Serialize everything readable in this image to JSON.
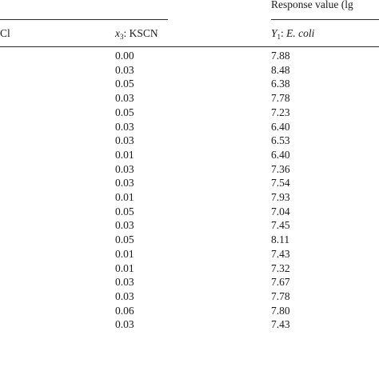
{
  "header": {
    "response_group": "Response value (lg",
    "col_x2_tail": "Cl",
    "col_x3_var": "x",
    "col_x3_sub": "3",
    "col_x3_rest": ": KSCN",
    "col_y1_var": "Y",
    "col_y1_sub": "1",
    "col_y1_colon": ":",
    "col_y1_species": "E. coli"
  },
  "rows": [
    {
      "x3": "0.00",
      "y1": "7.88"
    },
    {
      "x3": "0.03",
      "y1": "8.48"
    },
    {
      "x3": "0.05",
      "y1": "6.38"
    },
    {
      "x3": "0.03",
      "y1": "7.78"
    },
    {
      "x3": "0.05",
      "y1": "7.23"
    },
    {
      "x3": "0.03",
      "y1": "6.40"
    },
    {
      "x3": "0.03",
      "y1": "6.53"
    },
    {
      "x3": "0.01",
      "y1": "6.40"
    },
    {
      "x3": "0.03",
      "y1": "7.36"
    },
    {
      "x3": "0.03",
      "y1": "7.54"
    },
    {
      "x3": "0.01",
      "y1": "7.93"
    },
    {
      "x3": "0.05",
      "y1": "7.04"
    },
    {
      "x3": "0.03",
      "y1": "7.45"
    },
    {
      "x3": "0.05",
      "y1": "8.11"
    },
    {
      "x3": "0.01",
      "y1": "7.43"
    },
    {
      "x3": "0.01",
      "y1": "7.32"
    },
    {
      "x3": "0.03",
      "y1": "7.67"
    },
    {
      "x3": "0.03",
      "y1": "7.78"
    },
    {
      "x3": "0.06",
      "y1": "7.80"
    },
    {
      "x3": "0.03",
      "y1": "7.43"
    }
  ]
}
